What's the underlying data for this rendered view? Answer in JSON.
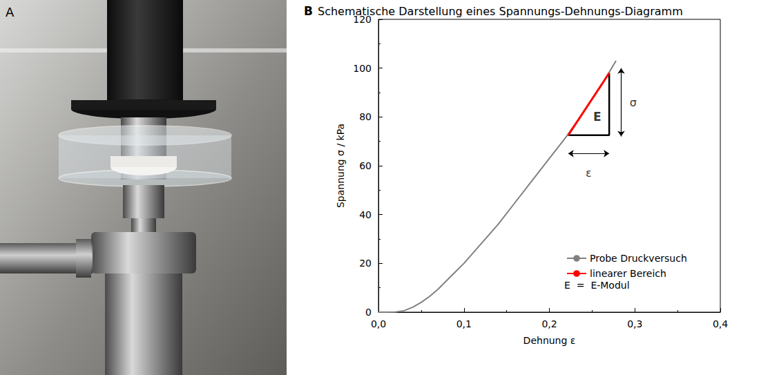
{
  "panel_a": {
    "label": "A"
  },
  "chart_data": {
    "type": "line",
    "panel_label": "B",
    "title": "Schematische Darstellung eines Spannungs-Dehnungs-Diagramm",
    "x_label": "Dehnung ε",
    "y_label": "Spannung σ / kPa",
    "xlim": [
      0,
      0.4
    ],
    "xticks": [
      {
        "value": 0,
        "label": "0,0"
      },
      {
        "value": 0.1,
        "label": "0,1"
      },
      {
        "value": 0.2,
        "label": "0,2"
      },
      {
        "value": 0.3,
        "label": "0,3"
      },
      {
        "value": 0.4,
        "label": "0,4"
      }
    ],
    "ylim": [
      0,
      120
    ],
    "yticks": [
      0,
      20,
      40,
      60,
      80,
      100,
      120
    ],
    "grid": false,
    "legend": "bottom-right",
    "legend_text": "E  =  E-Modul",
    "series": [
      {
        "name": "Probe Druckversuch",
        "color": "#808080",
        "line_style": "solid",
        "x": [
          0,
          0.01,
          0.02,
          0.03,
          0.04,
          0.05,
          0.06,
          0.07,
          0.08,
          0.09,
          0.1,
          0.12,
          0.14,
          0.16,
          0.18,
          0.2,
          0.22,
          0.24,
          0.26,
          0.278
        ],
        "values": [
          0,
          0,
          0.1,
          0.6,
          2,
          4,
          6.5,
          9.5,
          13,
          16.5,
          20,
          28,
          36,
          45,
          54,
          63,
          72,
          82,
          92.5,
          103
        ]
      },
      {
        "name": "linearer Bereich",
        "color": "#ff0000",
        "line_style": "solid",
        "x": [
          0.222,
          0.27
        ],
        "values": [
          72.5,
          98
        ]
      }
    ],
    "triangle": {
      "color": "#000000",
      "x": [
        0.222,
        0.27,
        0.27
      ],
      "y": [
        72.5,
        72.5,
        98
      ]
    },
    "arrows": [
      {
        "x": [
          0.284,
          0.284
        ],
        "y": [
          72,
          100
        ]
      },
      {
        "x": [
          0.222,
          0.27
        ],
        "y": [
          65,
          65
        ]
      }
    ],
    "annotations": [
      {
        "text": "E",
        "x": 0.256,
        "y": 80
      },
      {
        "text": "σ",
        "x": 0.298,
        "y": 86
      },
      {
        "text": "ε",
        "x": 0.246,
        "y": 57
      }
    ]
  }
}
